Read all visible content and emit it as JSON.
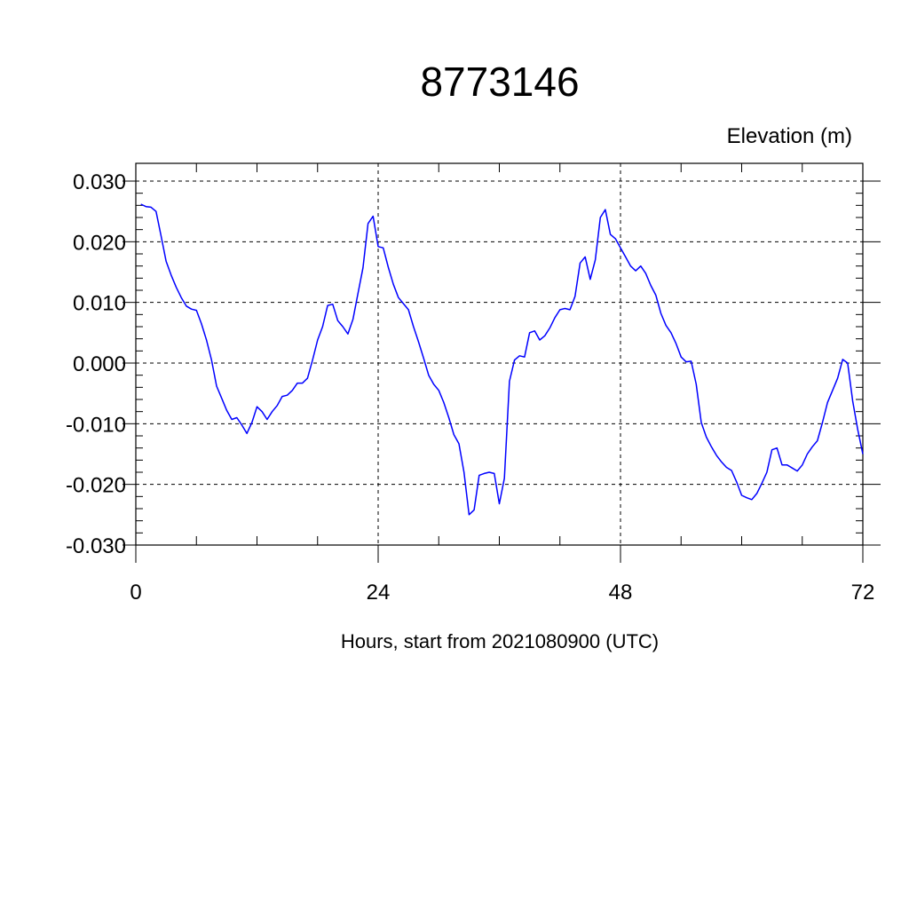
{
  "chart_data": {
    "type": "line",
    "title": "8773146",
    "subtitle": "Elevation (m)",
    "xlabel": "Hours, start from 2021080900 (UTC)",
    "ylabel": "",
    "xlim": [
      0,
      72
    ],
    "ylim": [
      -0.03,
      0.03
    ],
    "xticks": [
      0,
      24,
      48,
      72
    ],
    "xtick_labels": [
      "0",
      "24",
      "48",
      "72"
    ],
    "yticks": [
      0.03,
      0.02,
      0.01,
      0.0,
      -0.01,
      -0.02,
      -0.03
    ],
    "ytick_labels": [
      "0.030",
      "0.020",
      "0.010",
      "0.000",
      "-0.010",
      "-0.020",
      "-0.030"
    ],
    "grid": true,
    "line_color": "#0000ff",
    "series": [
      {
        "x": [
          0.5,
          1,
          1.5,
          2,
          2.5,
          3,
          3.5,
          4,
          4.5,
          5,
          5.5,
          6,
          6.5,
          7,
          7.5,
          8,
          8.5,
          9,
          9.5,
          10,
          10.5,
          11,
          11.5,
          12,
          12.5,
          13,
          13.5,
          14,
          14.5,
          15,
          15.5,
          16,
          16.5,
          17,
          17.5,
          18,
          18.5,
          19,
          19.5,
          20,
          20.5,
          21,
          21.5,
          22,
          22.5,
          23,
          23.5,
          24,
          24.5,
          25,
          25.5,
          26,
          26.5,
          27,
          27.5,
          28,
          28.5,
          29,
          29.5,
          30,
          30.5,
          31,
          31.5,
          32,
          32.5,
          33,
          33.5,
          34,
          34.5,
          35,
          35.5,
          36,
          36.5,
          37,
          37.5,
          38,
          38.5,
          39,
          39.5,
          40,
          40.5,
          41,
          41.5,
          42,
          42.5,
          43,
          43.5,
          44,
          44.5,
          45,
          45.5,
          46,
          46.5,
          47,
          47.5,
          48,
          48.5,
          49,
          49.5,
          50,
          50.5,
          51,
          51.5,
          52,
          52.5,
          53,
          53.5,
          54,
          54.5,
          55,
          55.5,
          56,
          56.5,
          57,
          57.5,
          58,
          58.5,
          59,
          59.5,
          60,
          60.5,
          61,
          61.5,
          62,
          62.5,
          63,
          63.5,
          64,
          64.5,
          65,
          65.5,
          66,
          66.5,
          67,
          67.5,
          68,
          68.5,
          69,
          69.5,
          70,
          70.5,
          71,
          71.5,
          72
        ],
        "y": [
          0.0262,
          0.0258,
          0.0257,
          0.025,
          0.021,
          0.0168,
          0.0145,
          0.0125,
          0.0108,
          0.0094,
          0.0089,
          0.0087,
          0.0065,
          0.0038,
          0.0005,
          -0.0038,
          -0.0058,
          -0.0078,
          -0.0093,
          -0.009,
          -0.0102,
          -0.0116,
          -0.0098,
          -0.0072,
          -0.008,
          -0.0093,
          -0.008,
          -0.007,
          -0.0055,
          -0.0053,
          -0.0045,
          -0.0033,
          -0.0033,
          -0.0025,
          0.0005,
          0.0038,
          0.006,
          0.0095,
          0.0097,
          0.007,
          0.006,
          0.0048,
          0.0072,
          0.0115,
          0.0157,
          0.023,
          0.0242,
          0.0192,
          0.019,
          0.0158,
          0.013,
          0.0108,
          0.0098,
          0.0088,
          0.006,
          0.0035,
          0.0008,
          -0.002,
          -0.0035,
          -0.0045,
          -0.0065,
          -0.009,
          -0.0118,
          -0.0133,
          -0.018,
          -0.025,
          -0.0242,
          -0.0185,
          -0.0182,
          -0.018,
          -0.0182,
          -0.0232,
          -0.019,
          -0.003,
          0.0005,
          0.0012,
          0.001,
          0.005,
          0.0053,
          0.0038,
          0.0045,
          0.0058,
          0.0075,
          0.0088,
          0.009,
          0.0088,
          0.011,
          0.0165,
          0.0175,
          0.0138,
          0.017,
          0.024,
          0.0253,
          0.0212,
          0.0205,
          0.019,
          0.0175,
          0.016,
          0.0152,
          0.016,
          0.0148,
          0.0128,
          0.0112,
          0.0082,
          0.0062,
          0.005,
          0.0032,
          0.001,
          0.0002,
          0.0003,
          -0.0035,
          -0.0098,
          -0.0122,
          -0.0138,
          -0.0152,
          -0.0163,
          -0.0172,
          -0.0177,
          -0.0196,
          -0.0218,
          -0.0222,
          -0.0225,
          -0.0215,
          -0.0198,
          -0.018,
          -0.0143,
          -0.014,
          -0.0168,
          -0.0168,
          -0.0173,
          -0.0178,
          -0.0168,
          -0.015,
          -0.0138,
          -0.0128,
          -0.0098,
          -0.0065,
          -0.0045,
          -0.0025,
          0.0006,
          0.0,
          -0.0063,
          -0.011,
          -0.015
        ]
      }
    ]
  }
}
